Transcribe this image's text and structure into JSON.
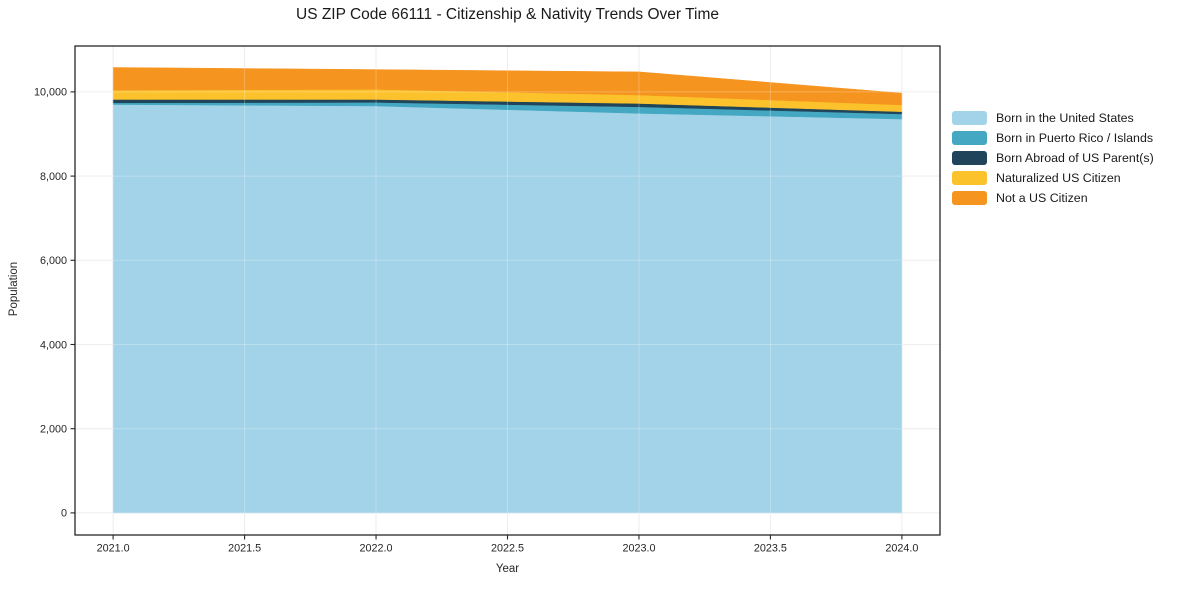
{
  "title": "US ZIP Code 66111 - Citizenship & Nativity Trends Over Time",
  "chart_data": {
    "type": "area",
    "stacked": true,
    "title": "US ZIP Code 66111 - Citizenship & Nativity Trends Over Time",
    "xlabel": "Year",
    "ylabel": "Population",
    "x": [
      2021,
      2022,
      2023,
      2024
    ],
    "series": [
      {
        "name": "Born in the United States",
        "color": "#A3D3E8",
        "values": [
          9700,
          9665,
          9490,
          9355
        ]
      },
      {
        "name": "Born in Puerto Rico / Islands",
        "color": "#44A8C2",
        "values": [
          40,
          85,
          155,
          120
        ]
      },
      {
        "name": "Born Abroad of US Parent(s)",
        "color": "#20455A",
        "values": [
          80,
          70,
          80,
          55
        ]
      },
      {
        "name": "Naturalized US Citizen",
        "color": "#FBC22C",
        "values": [
          220,
          240,
          200,
          160
        ]
      },
      {
        "name": "Not a US Citizen",
        "color": "#F5941F",
        "values": [
          540,
          470,
          550,
          280
        ]
      }
    ],
    "x_ticks": {
      "values": [
        2021.0,
        2021.5,
        2022.0,
        2022.5,
        2023.0,
        2023.5,
        2024.0
      ],
      "labels": [
        "2021.0",
        "2021.5",
        "2022.0",
        "2022.5",
        "2023.0",
        "2023.5",
        "2024.0"
      ]
    },
    "y_ticks": {
      "values": [
        0,
        2000,
        4000,
        6000,
        8000,
        10000
      ],
      "labels": [
        "0",
        "2,000",
        "4,000",
        "6,000",
        "8,000",
        "10,000"
      ]
    },
    "xlim": [
      2020.855,
      2024.145
    ],
    "ylim": [
      -525,
      11090
    ],
    "grid": true,
    "legend_position": "outside-right",
    "colors": {
      "grid": "#e8e8e8",
      "grid_over_area": "rgba(255,255,255,0.25)",
      "frame": "#262626",
      "text": "#262626"
    }
  }
}
